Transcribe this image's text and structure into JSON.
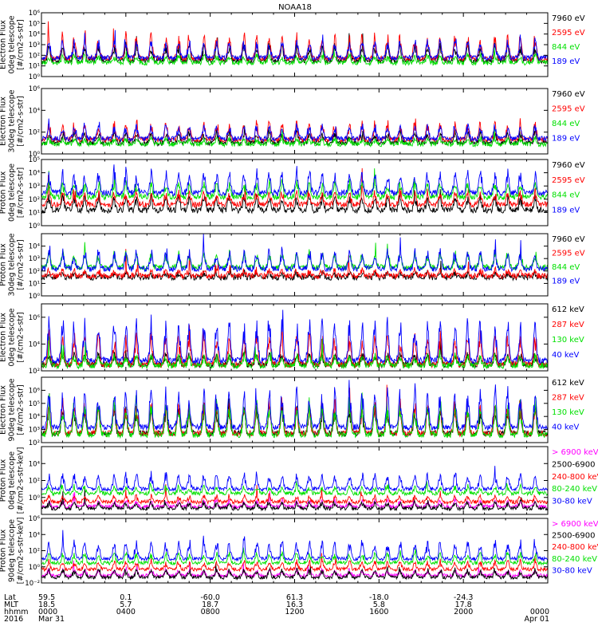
{
  "title": "NOAA18",
  "colors": {
    "black": "#000000",
    "red": "#ff0000",
    "green": "#00e000",
    "blue": "#0000ff",
    "magenta": "#ff00ff"
  },
  "chart_data": [
    {
      "type": "line",
      "instrument": "TED",
      "ylabel": [
        "TED",
        "Electron Flux",
        "0deg telescope",
        "[#/cm2-s-str]"
      ],
      "ylim": [
        1,
        1000000
      ],
      "log": true,
      "yticks": [
        {
          "v": 1,
          "l": "10⁰"
        },
        {
          "v": 10,
          "l": "10¹"
        },
        {
          "v": 100,
          "l": "10²"
        },
        {
          "v": 1000,
          "l": "10³"
        },
        {
          "v": 10000,
          "l": "10⁴"
        },
        {
          "v": 100000,
          "l": "10⁵"
        },
        {
          "v": 1000000,
          "l": "10⁶"
        }
      ],
      "series": [
        {
          "name": "7960 eV",
          "color": "black",
          "base": 30,
          "amp": 1.2
        },
        {
          "name": "2595 eV",
          "color": "red",
          "base": 50,
          "amp": 1.8
        },
        {
          "name": "844 eV",
          "color": "green",
          "base": 20,
          "amp": 0.6
        },
        {
          "name": "189 eV",
          "color": "blue",
          "base": 60,
          "amp": 1.3
        }
      ]
    },
    {
      "type": "line",
      "instrument": "TED",
      "ylabel": [
        "TED",
        "Electron Flux",
        "30deg telescope",
        "[#/cm2-s-str]"
      ],
      "ylim": [
        1,
        1000000
      ],
      "log": true,
      "yticks": [
        {
          "v": 1,
          "l": "10⁰"
        },
        {
          "v": 100,
          "l": "10²"
        },
        {
          "v": 10000,
          "l": "10⁴"
        },
        {
          "v": 1000000,
          "l": "10⁶"
        }
      ],
      "series": [
        {
          "name": "7960 eV",
          "color": "black",
          "base": 10,
          "amp": 0.8
        },
        {
          "name": "2595 eV",
          "color": "red",
          "base": 20,
          "amp": 1.3
        },
        {
          "name": "844 eV",
          "color": "green",
          "base": 8,
          "amp": 0.4
        },
        {
          "name": "189 eV",
          "color": "blue",
          "base": 25,
          "amp": 1.0
        }
      ]
    },
    {
      "type": "line",
      "instrument": "TED",
      "ylabel": [
        "TED",
        "Proton Flux",
        "0deg telescope",
        "[#/cm2-s-str]"
      ],
      "ylim": [
        1,
        100000
      ],
      "log": true,
      "yticks": [
        {
          "v": 1,
          "l": "10⁰"
        },
        {
          "v": 10,
          "l": "10¹"
        },
        {
          "v": 100,
          "l": "10²"
        },
        {
          "v": 1000,
          "l": "10³"
        },
        {
          "v": 10000,
          "l": "10⁴"
        },
        {
          "v": 100000,
          "l": "10⁵"
        }
      ],
      "series": [
        {
          "name": "7960 eV",
          "color": "black",
          "base": 15,
          "amp": 0.9
        },
        {
          "name": "2595 eV",
          "color": "red",
          "base": 40,
          "amp": 0.8
        },
        {
          "name": "844 eV",
          "color": "green",
          "base": 150,
          "amp": 0.9
        },
        {
          "name": "189 eV",
          "color": "blue",
          "base": 300,
          "amp": 1.3
        }
      ]
    },
    {
      "type": "line",
      "instrument": "TED",
      "ylabel": [
        "TED",
        "Proton Flux",
        "30deg telescope",
        "[#/cm2-s-str]"
      ],
      "ylim": [
        1,
        100000
      ],
      "log": true,
      "yticks": [
        {
          "v": 1,
          "l": "10⁰"
        },
        {
          "v": 10,
          "l": "10¹"
        },
        {
          "v": 100,
          "l": "10²"
        },
        {
          "v": 1000,
          "l": "10³"
        },
        {
          "v": 10000,
          "l": "10⁴"
        }
      ],
      "series": [
        {
          "name": "7960 eV",
          "color": "black",
          "base": 30,
          "amp": 0.3
        },
        {
          "name": "2595 eV",
          "color": "red",
          "base": 40,
          "amp": 0.4
        },
        {
          "name": "844 eV",
          "color": "green",
          "base": 200,
          "amp": 1.0
        },
        {
          "name": "189 eV",
          "color": "blue",
          "base": 150,
          "amp": 1.2
        }
      ]
    },
    {
      "type": "line",
      "instrument": "MEPED",
      "ylabel": [
        "MEPED",
        "Electron Flux",
        "0deg telescope",
        "[#/cm2-s-str]"
      ],
      "ylim": [
        100,
        10000000
      ],
      "log": true,
      "yticks": [
        {
          "v": 100,
          "l": "10²"
        },
        {
          "v": 10000,
          "l": "10⁴"
        },
        {
          "v": 1000000,
          "l": "10⁶"
        }
      ],
      "series": [
        {
          "name": "612 keV",
          "color": "black",
          "base": 300,
          "amp": 0.7
        },
        {
          "name": "287 keV",
          "color": "red",
          "base": 300,
          "amp": 1.8
        },
        {
          "name": "130 keV",
          "color": "green",
          "base": 250,
          "amp": 0.6
        },
        {
          "name": "40 keV",
          "color": "blue",
          "base": 600,
          "amp": 2.4
        }
      ]
    },
    {
      "type": "line",
      "instrument": "MEPED",
      "ylabel": [
        "MEPED",
        "Electron Flux",
        "90deg telescope",
        "[#/cm2-s-str]"
      ],
      "ylim": [
        100,
        10000000
      ],
      "log": true,
      "yticks": [
        {
          "v": 100,
          "l": "10²"
        },
        {
          "v": 1000,
          "l": "10³"
        },
        {
          "v": 10000,
          "l": "10⁴"
        },
        {
          "v": 100000,
          "l": "10⁵"
        },
        {
          "v": 1000000,
          "l": "10⁶"
        }
      ],
      "series": [
        {
          "name": "612 keV",
          "color": "black",
          "base": 500,
          "amp": 1.6
        },
        {
          "name": "287 keV",
          "color": "red",
          "base": 500,
          "amp": 2.0
        },
        {
          "name": "130 keV",
          "color": "green",
          "base": 400,
          "amp": 2.0
        },
        {
          "name": "40 keV",
          "color": "blue",
          "base": 1500,
          "amp": 2.3
        }
      ]
    },
    {
      "type": "line",
      "instrument": "MEPED",
      "ylabel": [
        "MEPED",
        "Proton Flux",
        "0deg telescope",
        "[#/cm2-s-str-keV]"
      ],
      "ylim": [
        0.01,
        1000000
      ],
      "log": true,
      "yticks": [
        {
          "v": 1,
          "l": "10⁰"
        },
        {
          "v": 100,
          "l": "10²"
        },
        {
          "v": 10000,
          "l": "10⁴"
        }
      ],
      "series": [
        {
          "name": "> 6900 keV",
          "color": "magenta",
          "base": 0.08,
          "amp": 0.6
        },
        {
          "name": "2500-6900",
          "color": "black",
          "base": 0.05,
          "amp": 0.6
        },
        {
          "name": "240-800 keV",
          "color": "red",
          "base": 0.3,
          "amp": 0.6
        },
        {
          "name": "80-240 keV",
          "color": "green",
          "base": 3,
          "amp": 0.7
        },
        {
          "name": "30-80 keV",
          "color": "blue",
          "base": 10,
          "amp": 1.5
        }
      ]
    },
    {
      "type": "line",
      "instrument": "MEPED",
      "ylabel": [
        "MEPED",
        "Proton Flux",
        "90deg telescope",
        "[#/cm2-s-str-keV]"
      ],
      "ylim": [
        0.01,
        1000000
      ],
      "log": true,
      "yticks": [
        {
          "v": 0.01,
          "l": "10⁻²"
        },
        {
          "v": 1,
          "l": "10⁰"
        },
        {
          "v": 100,
          "l": "10²"
        },
        {
          "v": 10000,
          "l": "10⁴"
        },
        {
          "v": 1000000,
          "l": "10⁶"
        }
      ],
      "series": [
        {
          "name": "> 6900 keV",
          "color": "magenta",
          "base": 0.08,
          "amp": 0.6
        },
        {
          "name": "2500-6900",
          "color": "black",
          "base": 0.05,
          "amp": 0.8
        },
        {
          "name": "240-800 keV",
          "color": "red",
          "base": 0.5,
          "amp": 0.8
        },
        {
          "name": "80-240 keV",
          "color": "green",
          "base": 3,
          "amp": 1.0
        },
        {
          "name": "30-80 keV",
          "color": "blue",
          "base": 10,
          "amp": 1.7
        }
      ]
    }
  ],
  "x_axis": {
    "range_hours": [
      0,
      24
    ],
    "row_labels": [
      "Lat",
      "MLT",
      "hhmm",
      "2016"
    ],
    "ticks": [
      {
        "hours": 0,
        "lat": "59.5",
        "mlt": "18.5",
        "hhmm": "0000",
        "date": "Mar 31"
      },
      {
        "hours": 4,
        "lat": "0.1",
        "mlt": "5.7",
        "hhmm": "0400",
        "date": ""
      },
      {
        "hours": 8,
        "lat": "-60.0",
        "mlt": "18.7",
        "hhmm": "0800",
        "date": ""
      },
      {
        "hours": 12,
        "lat": "61.3",
        "mlt": "16.3",
        "hhmm": "1200",
        "date": ""
      },
      {
        "hours": 16,
        "lat": "-18.0",
        "mlt": "5.8",
        "hhmm": "1600",
        "date": ""
      },
      {
        "hours": 20,
        "lat": "-24.3",
        "mlt": "17.8",
        "hhmm": "2000",
        "date": ""
      },
      {
        "hours": 24,
        "lat": "",
        "mlt": "",
        "hhmm": "0000",
        "date": "Apr 01"
      }
    ]
  }
}
